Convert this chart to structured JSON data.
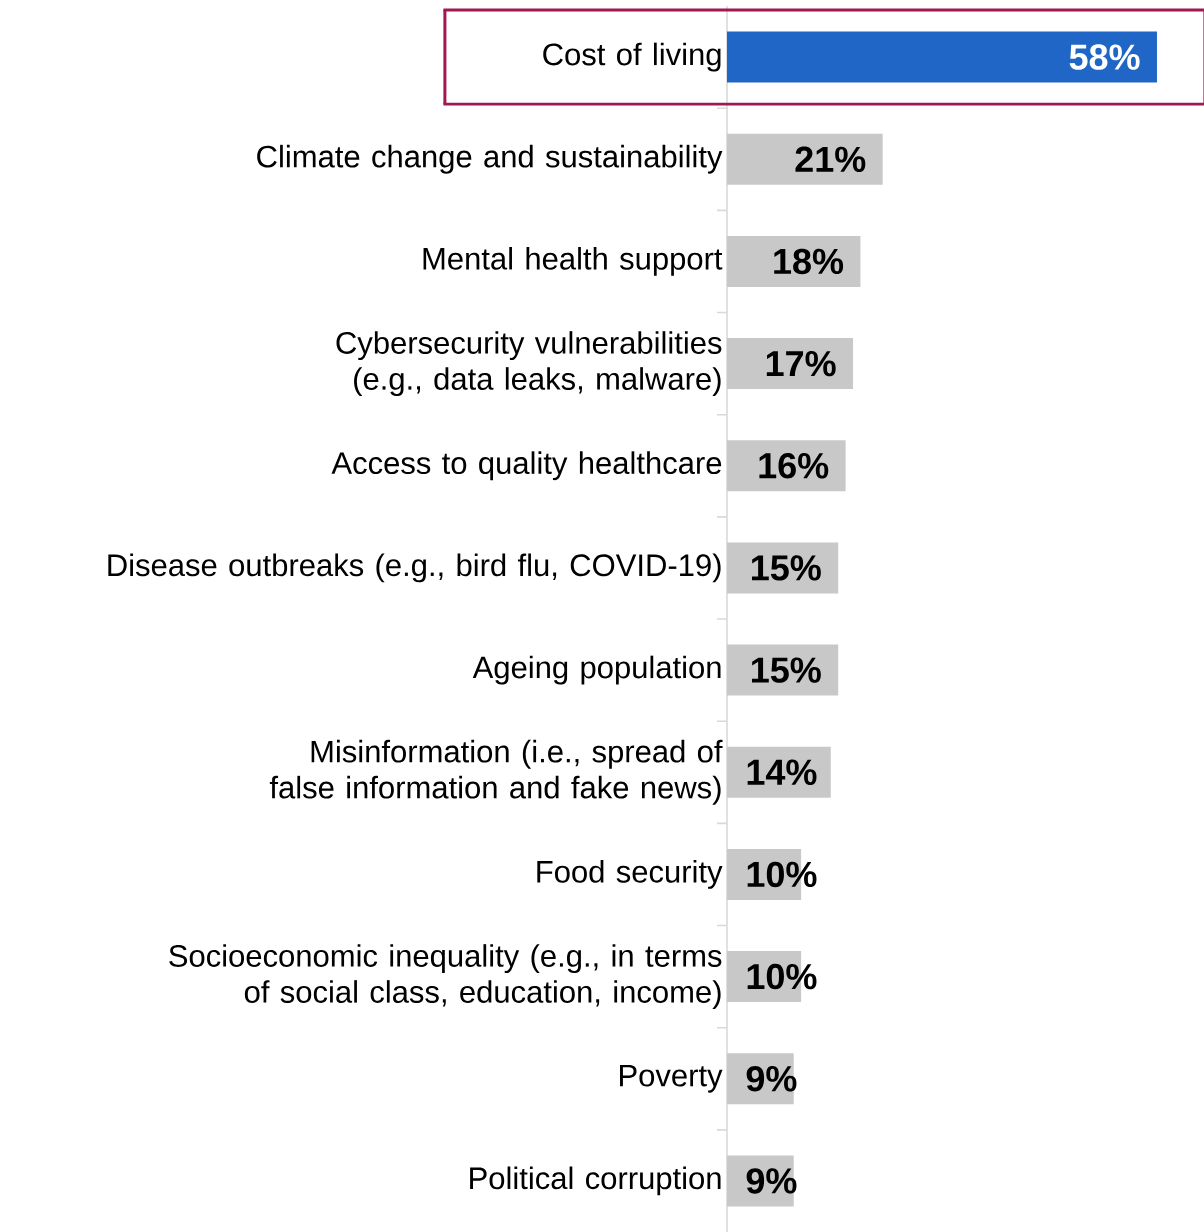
{
  "chart_data": {
    "type": "bar",
    "orientation": "horizontal",
    "categories": [
      "Cost of living",
      "Climate change and sustainability",
      "Mental health support",
      "Cybersecurity vulnerabilities (e.g., data leaks, malware)",
      "Access to quality healthcare",
      "Disease outbreaks (e.g., bird flu, COVID-19)",
      "Ageing population",
      "Misinformation (i.e., spread of false information and fake news)",
      "Food security",
      "Socioeconomic inequality (e.g., in terms of social class, education, income)",
      "Poverty",
      "Political corruption"
    ],
    "values": [
      58,
      21,
      18,
      17,
      16,
      15,
      15,
      14,
      10,
      10,
      9,
      9
    ],
    "colors": [
      "#1f66c6",
      "#c8c8c8",
      "#c8c8c8",
      "#c8c8c8",
      "#c8c8c8",
      "#c8c8c8",
      "#c8c8c8",
      "#c8c8c8",
      "#c8c8c8",
      "#c8c8c8",
      "#c8c8c8",
      "#c8c8c8"
    ],
    "value_labels": [
      "58%",
      "21%",
      "18%",
      "17%",
      "16%",
      "15%",
      "15%",
      "14%",
      "10%",
      "10%",
      "9%",
      "9%"
    ],
    "tick_labels": "y"
  }
}
